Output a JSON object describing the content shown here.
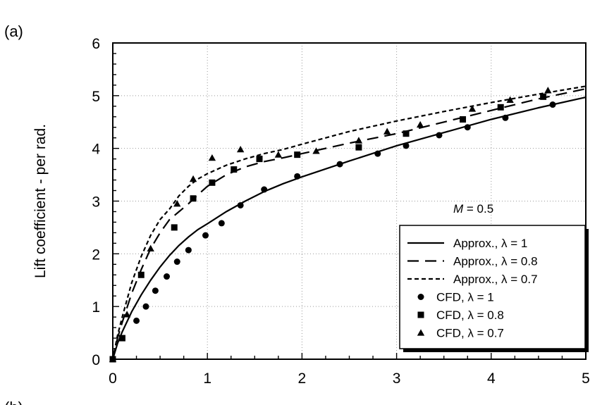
{
  "panel_labels": [
    "(a)",
    "(b)"
  ],
  "chart_data": {
    "type": "line",
    "title": "",
    "xlabel": "",
    "ylabel": "Lift coefficient - per rad.",
    "xlim": [
      0,
      5
    ],
    "ylim": [
      0,
      6
    ],
    "xticks": [
      "0",
      "1",
      "2",
      "3",
      "4",
      "5"
    ],
    "yticks": [
      "0",
      "1",
      "2",
      "3",
      "4",
      "5",
      "6"
    ],
    "grid": true,
    "legend_position": "bottom-right",
    "annotation": {
      "italic": "M",
      "rest": " = 0.5"
    },
    "series": [
      {
        "name": "Approx.,  λ = 1",
        "kind": "line",
        "dash": "solid",
        "x": [
          0,
          0.05,
          0.1,
          0.2,
          0.3,
          0.4,
          0.5,
          0.6,
          0.7,
          0.8,
          0.9,
          1.0,
          1.2,
          1.4,
          1.6,
          1.8,
          2.0,
          2.5,
          3.0,
          3.5,
          4.0,
          4.5,
          5.0
        ],
        "y": [
          0,
          0.3,
          0.52,
          0.9,
          1.22,
          1.5,
          1.75,
          1.97,
          2.16,
          2.32,
          2.46,
          2.57,
          2.8,
          3.0,
          3.18,
          3.33,
          3.46,
          3.76,
          4.05,
          4.3,
          4.55,
          4.77,
          4.97
        ]
      },
      {
        "name": "Approx.,  λ = 0.8",
        "kind": "line",
        "dash": "long",
        "x": [
          0,
          0.05,
          0.1,
          0.2,
          0.3,
          0.4,
          0.5,
          0.6,
          0.7,
          0.8,
          0.9,
          1.0,
          1.2,
          1.4,
          1.6,
          1.8,
          2.0,
          2.5,
          3.0,
          3.5,
          4.0,
          4.5,
          5.0
        ],
        "y": [
          0,
          0.4,
          0.7,
          1.25,
          1.7,
          2.1,
          2.4,
          2.65,
          2.8,
          2.95,
          3.12,
          3.28,
          3.5,
          3.65,
          3.75,
          3.82,
          3.9,
          4.1,
          4.28,
          4.5,
          4.72,
          4.94,
          5.13
        ]
      },
      {
        "name": "Approx.,  λ = 0.7",
        "kind": "line",
        "dash": "short",
        "x": [
          0,
          0.05,
          0.1,
          0.2,
          0.3,
          0.4,
          0.5,
          0.6,
          0.7,
          0.8,
          0.9,
          1.0,
          1.2,
          1.4,
          1.6,
          1.8,
          2.0,
          2.5,
          3.0,
          3.5,
          4.0,
          4.5,
          5.0
        ],
        "y": [
          0,
          0.45,
          0.8,
          1.45,
          1.95,
          2.35,
          2.65,
          2.85,
          3.1,
          3.28,
          3.42,
          3.52,
          3.68,
          3.8,
          3.9,
          3.98,
          4.08,
          4.32,
          4.52,
          4.7,
          4.87,
          5.03,
          5.18
        ]
      },
      {
        "name": "CFD,  λ = 1",
        "kind": "marker",
        "marker": "circle",
        "x": [
          0,
          0.25,
          0.35,
          0.45,
          0.57,
          0.68,
          0.8,
          0.98,
          1.15,
          1.35,
          1.6,
          1.95,
          2.4,
          2.8,
          3.1,
          3.45,
          3.75,
          4.15,
          4.65
        ],
        "y": [
          0,
          0.73,
          1.0,
          1.3,
          1.57,
          1.85,
          2.07,
          2.35,
          2.58,
          2.92,
          3.22,
          3.47,
          3.7,
          3.9,
          4.05,
          4.25,
          4.4,
          4.58,
          4.83
        ]
      },
      {
        "name": "CFD,  λ = 0.8",
        "kind": "marker",
        "marker": "square",
        "x": [
          0,
          0.1,
          0.3,
          0.65,
          0.85,
          1.05,
          1.28,
          1.55,
          1.95,
          2.6,
          3.1,
          3.7,
          4.1,
          4.55
        ],
        "y": [
          0,
          0.4,
          1.6,
          2.5,
          3.05,
          3.35,
          3.6,
          3.8,
          3.88,
          4.02,
          4.28,
          4.55,
          4.78,
          4.98
        ]
      },
      {
        "name": "CFD,  λ = 0.7",
        "kind": "marker",
        "marker": "triangle",
        "x": [
          0,
          0.15,
          0.4,
          0.68,
          0.85,
          1.05,
          1.35,
          1.75,
          2.15,
          2.6,
          2.9,
          3.25,
          3.8,
          4.2,
          4.6
        ],
        "y": [
          0,
          0.85,
          2.1,
          2.95,
          3.42,
          3.82,
          3.98,
          3.88,
          3.95,
          4.15,
          4.32,
          4.45,
          4.75,
          4.92,
          5.1
        ]
      }
    ]
  }
}
